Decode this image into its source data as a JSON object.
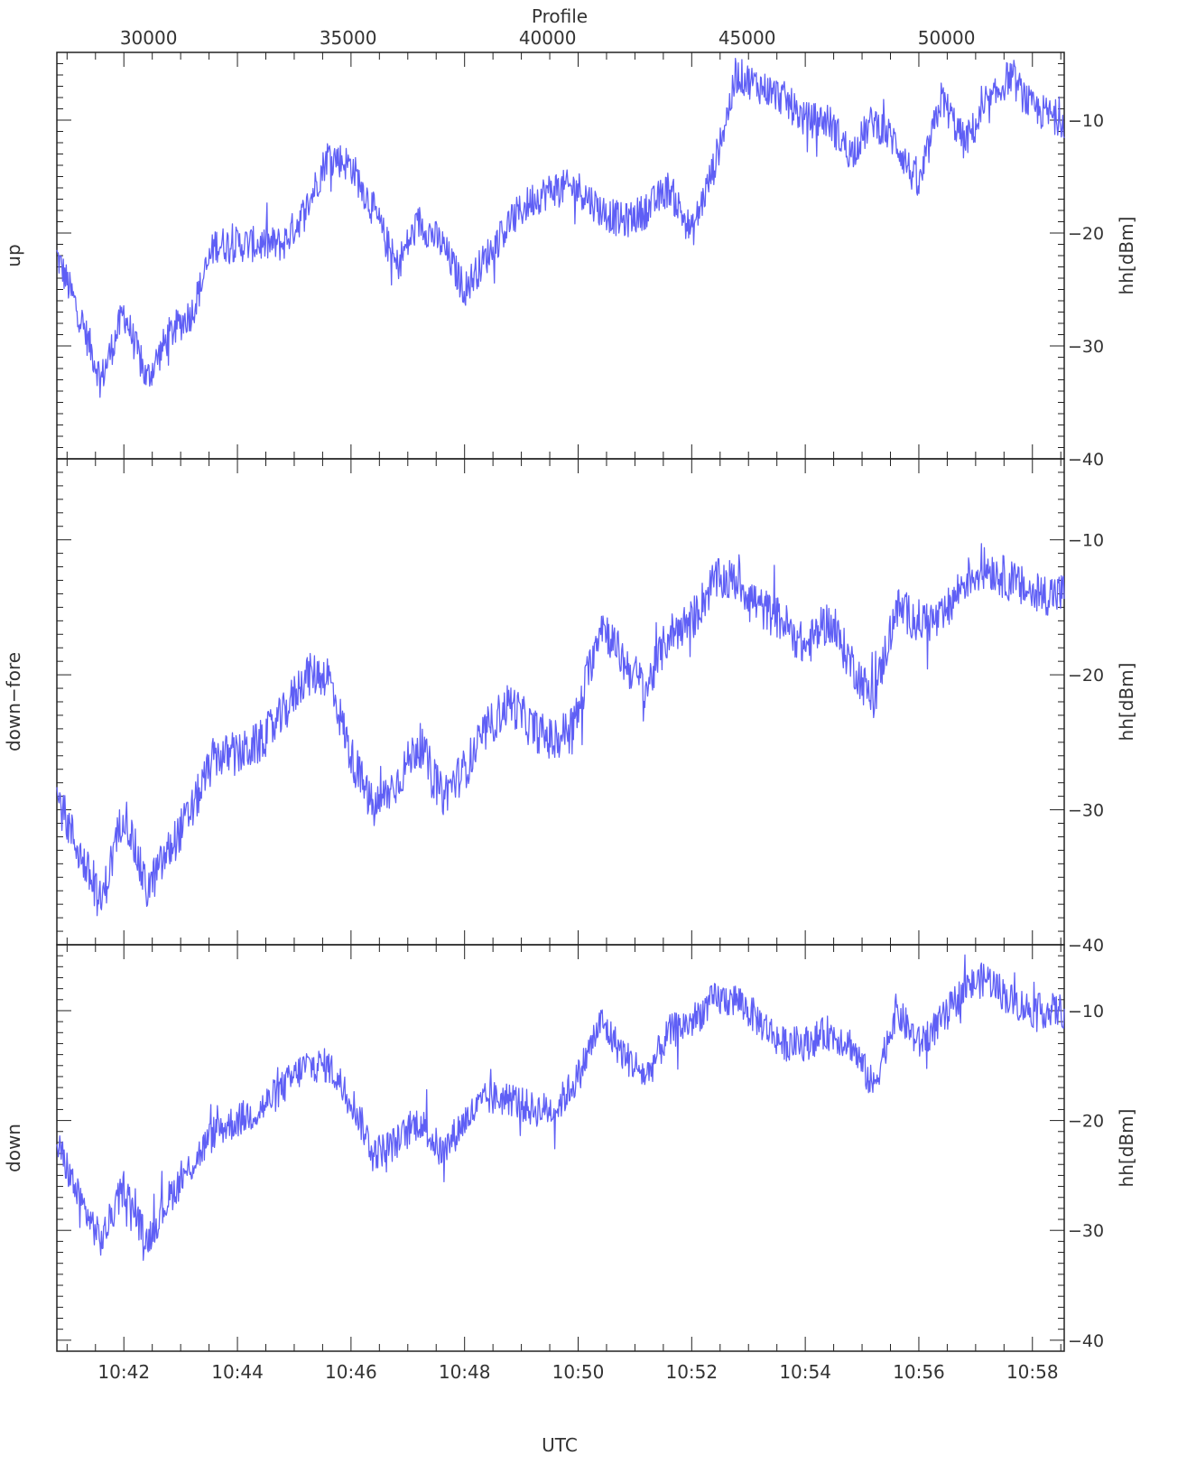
{
  "figure": {
    "top_axis_title": "Profile",
    "bottom_axis_title": "UTC",
    "top_ticks": [
      "30000",
      "35000",
      "40000",
      "45000",
      "50000"
    ],
    "top_tick_values": [
      30000,
      35000,
      40000,
      45000,
      50000
    ],
    "bottom_ticks": [
      "10:42",
      "10:44",
      "10:46",
      "10:48",
      "10:50",
      "10:52",
      "10:54",
      "10:56",
      "10:58"
    ],
    "series_color": "#5f5ff5",
    "axis_color": "#222222"
  },
  "chart_data": [
    {
      "type": "line",
      "panel": "up",
      "ylabel_left": "up",
      "ylabel_right": "hh[dBm]",
      "ylim": [
        -40,
        -4
      ],
      "yticks": [
        -10,
        -20,
        -30,
        -40
      ],
      "ytick_labels": [
        "−10",
        "−20",
        "−30",
        "−40"
      ],
      "xlim": [
        10.82,
        28.56
      ],
      "x_unit": "minutes after 10:30 UTC",
      "x": [
        10.82,
        11.2,
        11.6,
        12.0,
        12.4,
        12.8,
        13.2,
        13.6,
        14.0,
        14.4,
        14.8,
        15.2,
        15.6,
        16.0,
        16.4,
        16.8,
        17.2,
        17.6,
        18.0,
        18.4,
        18.8,
        19.2,
        19.6,
        20.0,
        20.4,
        20.8,
        21.2,
        21.6,
        22.0,
        22.4,
        22.8,
        23.2,
        23.6,
        24.0,
        24.4,
        24.8,
        25.2,
        25.6,
        26.0,
        26.4,
        26.8,
        27.2,
        27.6,
        28.0,
        28.56
      ],
      "values": [
        -22,
        -27,
        -33,
        -27,
        -33,
        -29,
        -27,
        -21,
        -21,
        -21,
        -21,
        -18,
        -13,
        -14,
        -18,
        -23,
        -19,
        -21,
        -25,
        -22,
        -19,
        -17,
        -16,
        -16,
        -18,
        -19,
        -18,
        -16,
        -20,
        -14,
        -6,
        -7,
        -8,
        -10,
        -10,
        -13,
        -10,
        -12,
        -16,
        -8,
        -12,
        -9,
        -6,
        -9,
        -10
      ]
    },
    {
      "type": "line",
      "panel": "down-fore",
      "ylabel_left": "down−fore",
      "ylabel_right": "hh[dBm]",
      "ylim": [
        -40,
        -4
      ],
      "yticks": [
        -10,
        -20,
        -30,
        -40
      ],
      "ytick_labels": [
        "−10",
        "−20",
        "−30",
        "−40"
      ],
      "xlim": [
        10.82,
        28.56
      ],
      "x_unit": "minutes after 10:30 UTC",
      "x": [
        10.82,
        11.2,
        11.6,
        12.0,
        12.4,
        12.8,
        13.2,
        13.6,
        14.0,
        14.4,
        14.8,
        15.2,
        15.6,
        16.0,
        16.4,
        16.8,
        17.2,
        17.6,
        18.0,
        18.4,
        18.8,
        19.2,
        19.6,
        20.0,
        20.4,
        20.8,
        21.2,
        21.6,
        22.0,
        22.4,
        22.8,
        23.2,
        23.6,
        24.0,
        24.4,
        24.8,
        25.2,
        25.6,
        26.0,
        26.4,
        26.8,
        27.2,
        27.6,
        28.0,
        28.56
      ],
      "values": [
        -29,
        -33,
        -37,
        -30,
        -36,
        -33,
        -30,
        -26,
        -26,
        -25,
        -23,
        -20,
        -20,
        -26,
        -30,
        -28,
        -25,
        -29,
        -27,
        -24,
        -22,
        -24,
        -25,
        -23,
        -16,
        -19,
        -21,
        -17,
        -16,
        -13,
        -13,
        -15,
        -16,
        -18,
        -16,
        -19,
        -22,
        -15,
        -16,
        -16,
        -13,
        -12,
        -13,
        -14,
        -14
      ]
    },
    {
      "type": "line",
      "panel": "down",
      "ylabel_left": "down",
      "ylabel_right": "hh[dBm]",
      "ylim": [
        -41,
        -4
      ],
      "yticks": [
        -10,
        -20,
        -30,
        -40
      ],
      "ytick_labels": [
        "−10",
        "−20",
        "−30",
        "−40"
      ],
      "xlim": [
        10.82,
        28.56
      ],
      "x_unit": "minutes after 10:30 UTC",
      "x": [
        10.82,
        11.2,
        11.6,
        12.0,
        12.4,
        12.8,
        13.2,
        13.6,
        14.0,
        14.4,
        14.8,
        15.2,
        15.6,
        16.0,
        16.4,
        16.8,
        17.2,
        17.6,
        18.0,
        18.4,
        18.8,
        19.2,
        19.6,
        20.0,
        20.4,
        20.8,
        21.2,
        21.6,
        22.0,
        22.4,
        22.8,
        23.2,
        23.6,
        24.0,
        24.4,
        24.8,
        25.2,
        25.6,
        26.0,
        26.4,
        26.8,
        27.2,
        27.6,
        28.0,
        28.56
      ],
      "values": [
        -22,
        -27,
        -31,
        -26,
        -31,
        -27,
        -24,
        -21,
        -20,
        -19,
        -17,
        -15,
        -15,
        -18,
        -23,
        -22,
        -20,
        -23,
        -20,
        -18,
        -18,
        -19,
        -19,
        -16,
        -11,
        -14,
        -16,
        -12,
        -11,
        -9,
        -9,
        -11,
        -13,
        -13,
        -12,
        -13,
        -17,
        -10,
        -13,
        -11,
        -8,
        -7,
        -9,
        -10,
        -10
      ]
    }
  ]
}
